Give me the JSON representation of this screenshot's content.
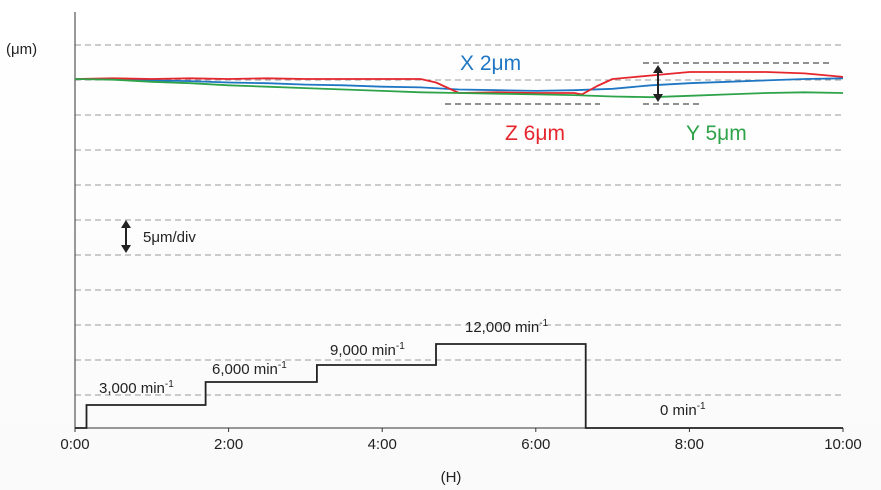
{
  "chart_data": {
    "type": "line",
    "title": "",
    "y_unit_label": "(μm)",
    "x_unit_label": "(H)",
    "x_ticks": [
      "0:00",
      "2:00",
      "4:00",
      "6:00",
      "8:00",
      "10:00"
    ],
    "xlim": [
      0,
      10
    ],
    "grid": true,
    "scale_annotation": "5μm/div",
    "series": [
      {
        "name": "X",
        "label": "X 2μm",
        "color": "#1f77c4",
        "x": [
          0.0,
          0.5,
          1.0,
          1.5,
          2.0,
          2.5,
          3.0,
          3.5,
          4.0,
          4.5,
          5.0,
          5.5,
          6.0,
          6.5,
          7.0,
          7.5,
          8.0,
          8.5,
          9.0,
          9.5,
          10.0
        ],
        "y": [
          0.0,
          0.0,
          -0.2,
          -0.3,
          -0.5,
          -0.6,
          -0.8,
          -0.9,
          -1.1,
          -1.2,
          -1.5,
          -1.6,
          -1.7,
          -1.6,
          -1.4,
          -0.9,
          -0.6,
          -0.4,
          -0.2,
          0.0,
          0.1
        ]
      },
      {
        "name": "Z",
        "label": "Z 6μm",
        "color": "#e5262d",
        "x": [
          0.0,
          0.5,
          1.0,
          1.5,
          2.0,
          2.5,
          3.0,
          3.5,
          4.0,
          4.5,
          4.7,
          4.9,
          5.0,
          5.5,
          6.0,
          6.5,
          6.6,
          6.8,
          7.0,
          7.5,
          8.0,
          8.5,
          9.0,
          9.5,
          10.0
        ],
        "y": [
          0.0,
          0.1,
          0.0,
          0.1,
          0.0,
          0.1,
          0.0,
          0.0,
          0.0,
          0.0,
          -0.5,
          -1.5,
          -2.0,
          -1.9,
          -2.0,
          -2.0,
          -2.2,
          -1.0,
          0.0,
          0.5,
          1.0,
          1.0,
          1.0,
          0.8,
          0.3
        ]
      },
      {
        "name": "Y",
        "label": "Y 5μm",
        "color": "#2ea34a",
        "x": [
          0.0,
          0.5,
          1.0,
          1.5,
          2.0,
          2.5,
          3.0,
          3.5,
          4.0,
          4.5,
          5.0,
          5.5,
          6.0,
          6.5,
          7.0,
          7.5,
          8.0,
          8.5,
          9.0,
          9.5,
          10.0
        ],
        "y": [
          0.0,
          -0.1,
          -0.4,
          -0.6,
          -0.9,
          -1.1,
          -1.3,
          -1.5,
          -1.7,
          -1.9,
          -2.0,
          -2.1,
          -2.2,
          -2.3,
          -2.5,
          -2.6,
          -2.4,
          -2.2,
          -2.0,
          -1.9,
          -2.0
        ]
      }
    ],
    "speed_profile": {
      "unit_label": "min⁻¹",
      "steps": [
        {
          "start": 0.15,
          "end": 1.7,
          "level": 1,
          "label": "3,000"
        },
        {
          "start": 1.7,
          "end": 3.15,
          "level": 2,
          "label": "6,000"
        },
        {
          "start": 3.15,
          "end": 4.7,
          "level": 3,
          "label": "9,000"
        },
        {
          "start": 4.7,
          "end": 6.65,
          "level": 4,
          "label": "12,000"
        },
        {
          "start": 6.65,
          "end": 10.0,
          "level": 0,
          "label": "0"
        }
      ]
    }
  }
}
